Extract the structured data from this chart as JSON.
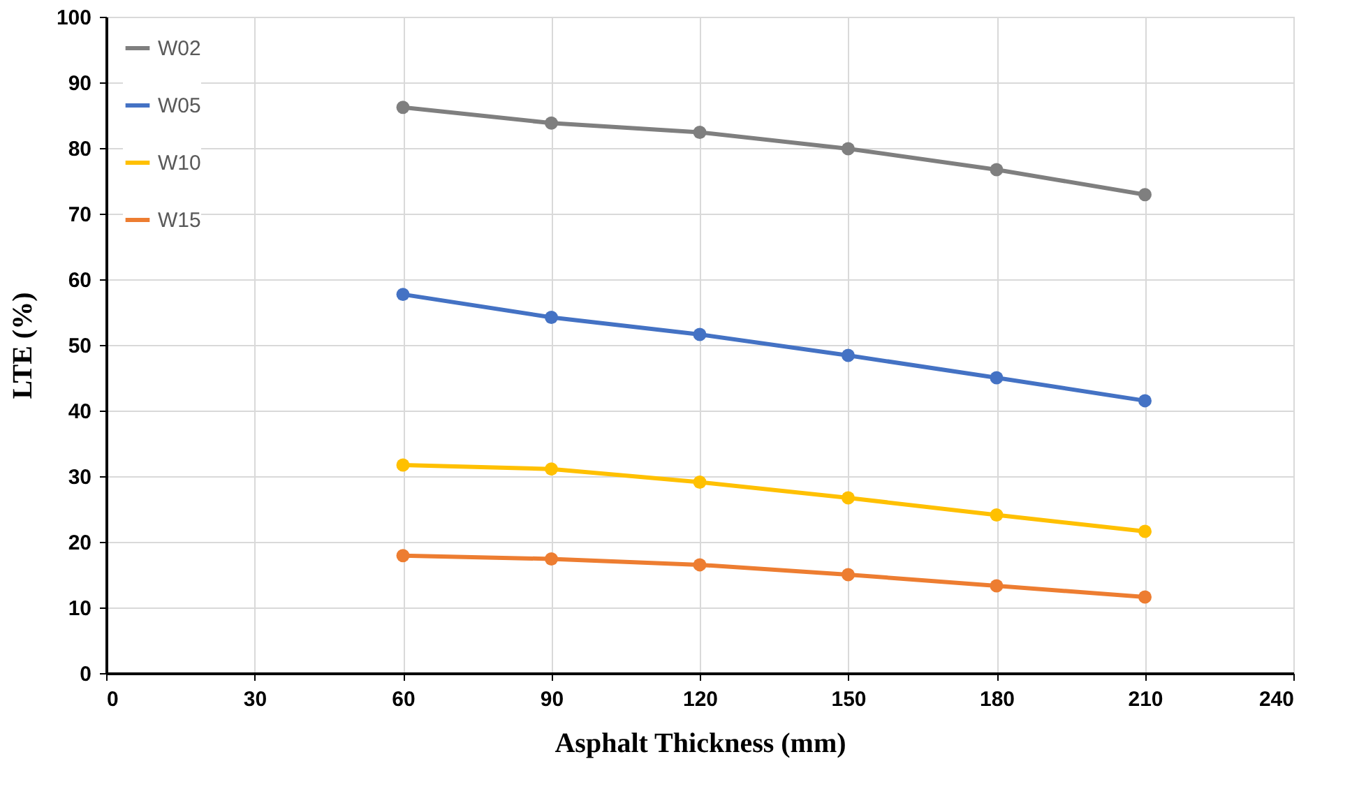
{
  "chart_data": {
    "type": "line",
    "xlabel": "Asphalt Thickness (mm)",
    "ylabel": "LTE (%)",
    "x": [
      60,
      90,
      120,
      150,
      180,
      210
    ],
    "xlim": [
      0,
      240
    ],
    "xticks": [
      0,
      30,
      60,
      90,
      120,
      150,
      180,
      210,
      240
    ],
    "ylim": [
      0,
      100
    ],
    "yticks": [
      0,
      10,
      20,
      30,
      40,
      50,
      60,
      70,
      80,
      90,
      100
    ],
    "grid": true,
    "legend": "top left",
    "marker": "circle",
    "line_style": "solid",
    "series": [
      {
        "name": "W02",
        "color": "#7f7f7f",
        "values": [
          86.2,
          83.8,
          82.4,
          79.9,
          76.7,
          72.9
        ]
      },
      {
        "name": "W05",
        "color": "#4472c4",
        "values": [
          57.7,
          54.2,
          51.6,
          48.4,
          45.0,
          41.5
        ]
      },
      {
        "name": "W10",
        "color": "#ffc000",
        "values": [
          31.7,
          31.1,
          29.1,
          26.7,
          24.1,
          21.6
        ]
      },
      {
        "name": "W15",
        "color": "#ed7d31",
        "values": [
          17.9,
          17.4,
          16.5,
          15.0,
          13.3,
          11.6
        ]
      }
    ]
  }
}
